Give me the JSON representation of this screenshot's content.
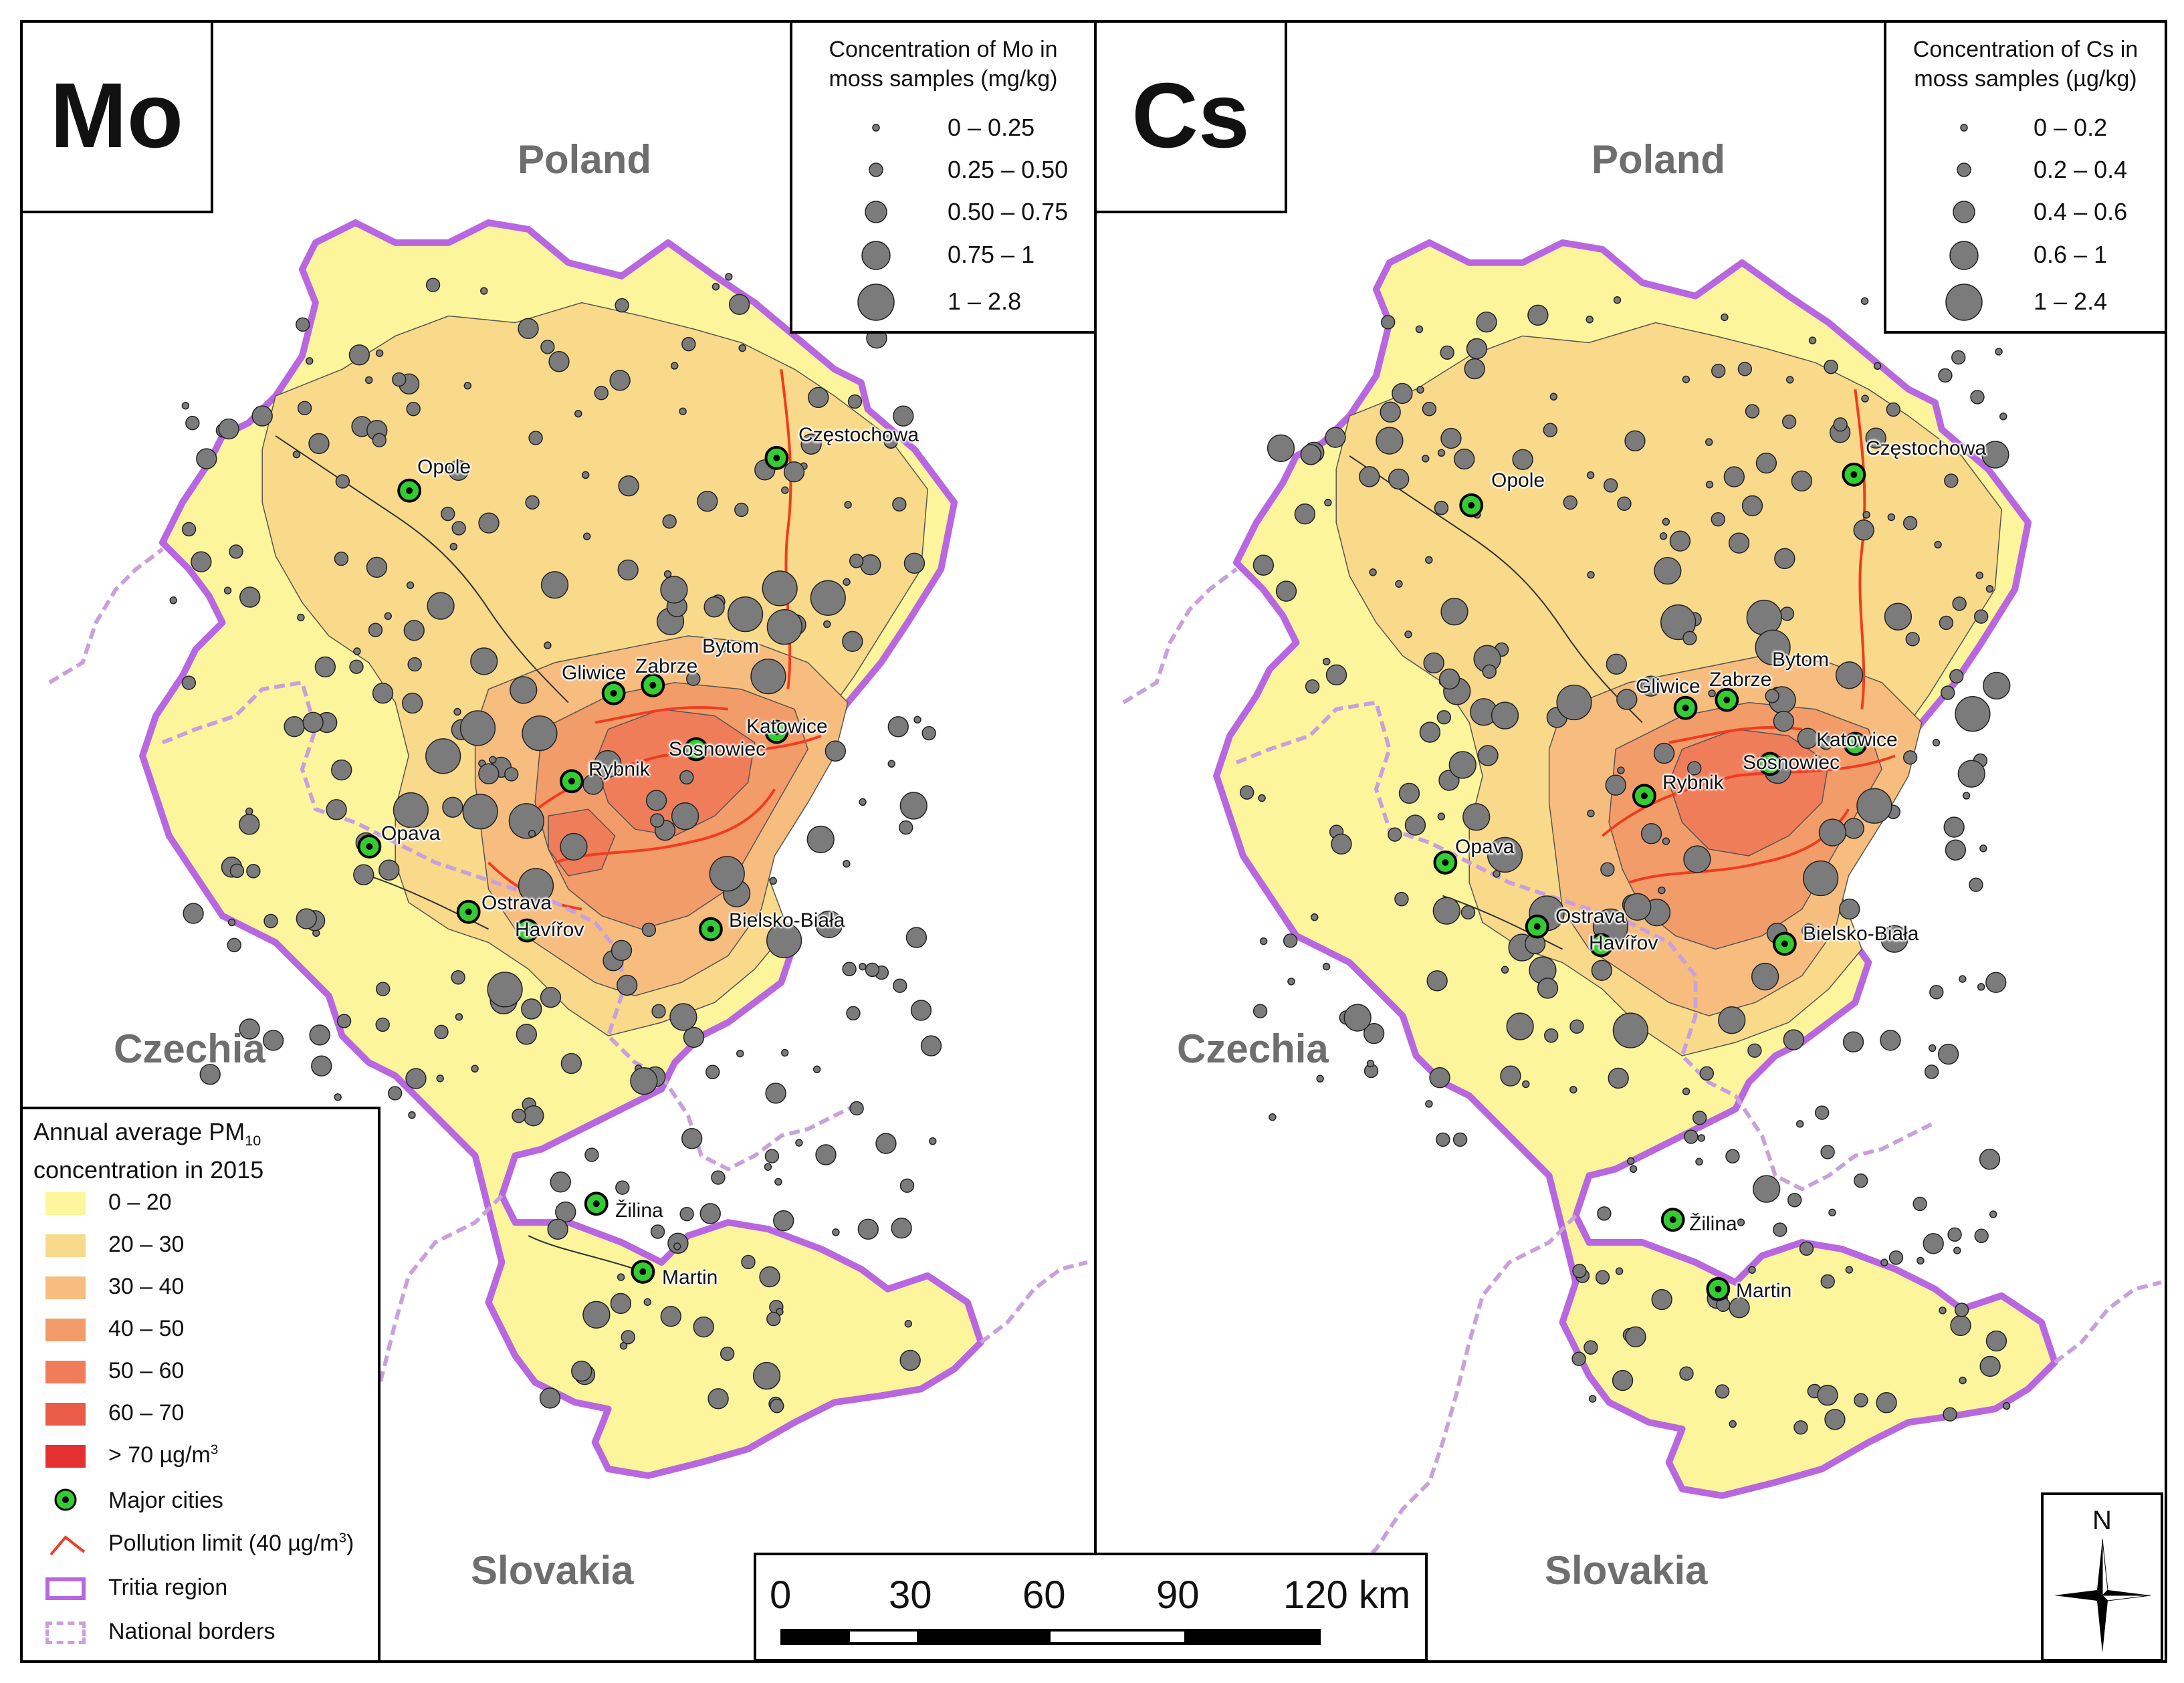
{
  "panels": {
    "mo": {
      "element": "Mo",
      "legend_title_line1": "Concentration of Mo in",
      "legend_title_line2": "moss samples (mg/kg)",
      "classes": [
        "0 – 0.25",
        "0.25 – 0.50",
        "0.50 – 0.75",
        "0.75 – 1",
        "1 – 2.8"
      ]
    },
    "cs": {
      "element": "Cs",
      "legend_title_line1": "Concentration of Cs in",
      "legend_title_line2": "moss samples (µg/kg)",
      "classes": [
        "0 – 0.2",
        "0.2 – 0.4",
        "0.4 – 0.6",
        "0.6 – 1",
        "1 – 2.4"
      ]
    }
  },
  "countries": {
    "poland": "Poland",
    "czechia": "Czechia",
    "slovakia": "Slovakia"
  },
  "cities": {
    "opole": "Opole",
    "czestochowa": "Częstochowa",
    "bytom": "Bytom",
    "gliwice": "Gliwice",
    "zabrze": "Zabrze",
    "katowice": "Katowice",
    "sosnowiec": "Sosnowiec",
    "rybnik": "Rybnik",
    "opava": "Opava",
    "ostrava": "Ostrava",
    "havirov": "Havířov",
    "bielsko": "Bielsko-Biała",
    "zilina": "Žilina",
    "martin": "Martin"
  },
  "pm_legend": {
    "title_line1_prefix": "Annual average PM",
    "title_line1_sub": "10",
    "title_line2": "concentration in 2015",
    "classes": [
      {
        "label": "0 – 20",
        "color": "#fdf59c"
      },
      {
        "label": "20 – 30",
        "color": "#f9d98a"
      },
      {
        "label": "30 – 40",
        "color": "#f6bd7e"
      },
      {
        "label": "40 – 50",
        "color": "#f29c6a"
      },
      {
        "label": "50 – 60",
        "color": "#ef7d5a"
      },
      {
        "label": "60 – 70",
        "color": "#ea5b48"
      },
      {
        "label": "> 70 µg/m",
        "sup": "3",
        "color": "#e43030"
      }
    ],
    "major_cities": "Major cities",
    "pollution_limit": "Pollution limit (40 µg/m",
    "pollution_limit_sup": "3",
    "pollution_limit_end": ")",
    "tritia_region": "Tritia region",
    "national_borders": "National borders"
  },
  "scale": {
    "ticks": [
      "0",
      "30",
      "60",
      "90",
      "120 km"
    ]
  },
  "north": "N",
  "colors": {
    "tritia_border": "#b867e0",
    "national_border": "#c9a0dc",
    "city_marker": "#33cc33",
    "sample_fill": "#7b7b7b",
    "pollution_line": "#f03c20"
  }
}
